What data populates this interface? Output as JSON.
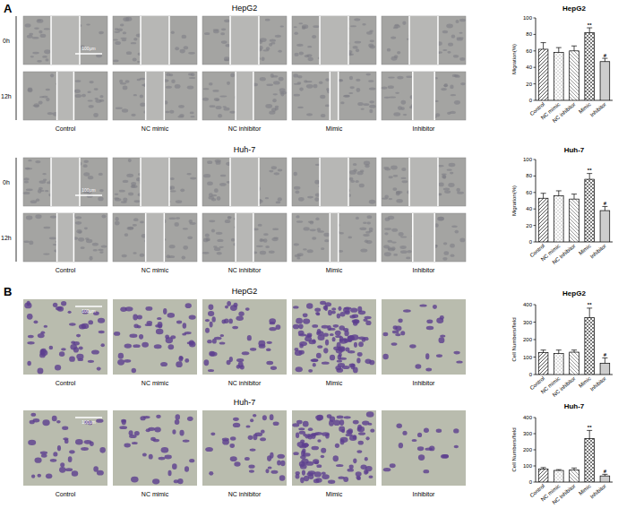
{
  "figure": {
    "panels": [
      {
        "label": "A",
        "rows": [
          {
            "title": "HepG2",
            "times": [
              "0h",
              "12h"
            ],
            "scale_bar": "100μm",
            "conditions": [
              "Control",
              "NC mimic",
              "NC inhibitor",
              "Mimic",
              "Inhibitor"
            ]
          },
          {
            "title": "Huh-7",
            "times": [
              "0h",
              "12h"
            ],
            "scale_bar": "100μm",
            "conditions": [
              "Control",
              "NC mimic",
              "NC inhibitor",
              "Mimic",
              "Inhibitor"
            ]
          }
        ]
      },
      {
        "label": "B",
        "rows": [
          {
            "title": "HepG2",
            "scale_bar": "100μm",
            "conditions": [
              "Control",
              "NC mimic",
              "NC inhibitor",
              "Mimic",
              "Inhibitor"
            ]
          },
          {
            "title": "Huh-7",
            "scale_bar": "100μm",
            "conditions": [
              "Control",
              "NC mimic",
              "NC inhibitor",
              "Mimic",
              "Inhibitor"
            ]
          }
        ]
      }
    ]
  },
  "chart_data": [
    {
      "type": "bar",
      "title": "HepG2",
      "y_label": "Migration(%)",
      "categories": [
        "Control",
        "NC mimic",
        "NC inhibitor",
        "Mimic",
        "Inhibitor"
      ],
      "values": [
        62,
        58,
        60,
        82,
        47
      ],
      "errors": [
        8,
        6,
        6,
        6,
        4
      ],
      "significance": [
        null,
        null,
        null,
        "**",
        "#"
      ],
      "ylim": [
        0,
        100
      ],
      "yticks": [
        0,
        20,
        40,
        60,
        80,
        100
      ],
      "color": "#555555"
    },
    {
      "type": "bar",
      "title": "Huh-7",
      "y_label": "Migration(%)",
      "categories": [
        "Control",
        "NC mimic",
        "NC Inhibitor",
        "Mimic",
        "Inhibitor"
      ],
      "values": [
        53,
        56,
        52,
        76,
        38
      ],
      "errors": [
        6,
        6,
        6,
        7,
        5
      ],
      "significance": [
        null,
        null,
        null,
        "**",
        "#"
      ],
      "ylim": [
        0,
        100
      ],
      "yticks": [
        0,
        20,
        40,
        60,
        80,
        100
      ],
      "color": "#555555"
    },
    {
      "type": "bar",
      "title": "HepG2",
      "y_label": "Cell Numbers/field",
      "categories": [
        "Control",
        "NC mimic",
        "NC inhibitor",
        "Mimic",
        "Inhibitor"
      ],
      "values": [
        125,
        120,
        128,
        325,
        65
      ],
      "errors": [
        15,
        20,
        12,
        55,
        30
      ],
      "significance": [
        null,
        null,
        null,
        "**",
        "#"
      ],
      "ylim": [
        0,
        400
      ],
      "yticks": [
        0,
        100,
        200,
        300,
        400
      ],
      "color": "#555555"
    },
    {
      "type": "bar",
      "title": "Huh-7",
      "y_label": "Cell Numbers/field",
      "categories": [
        "Control",
        "NC mimic",
        "NC Inhibitor",
        "Mimic",
        "Inhibitor"
      ],
      "values": [
        80,
        72,
        75,
        270,
        38
      ],
      "errors": [
        10,
        5,
        12,
        50,
        10
      ],
      "significance": [
        null,
        null,
        null,
        "**",
        "#"
      ],
      "ylim": [
        0,
        400
      ],
      "yticks": [
        0,
        100,
        200,
        300,
        400
      ],
      "color": "#555555"
    }
  ]
}
